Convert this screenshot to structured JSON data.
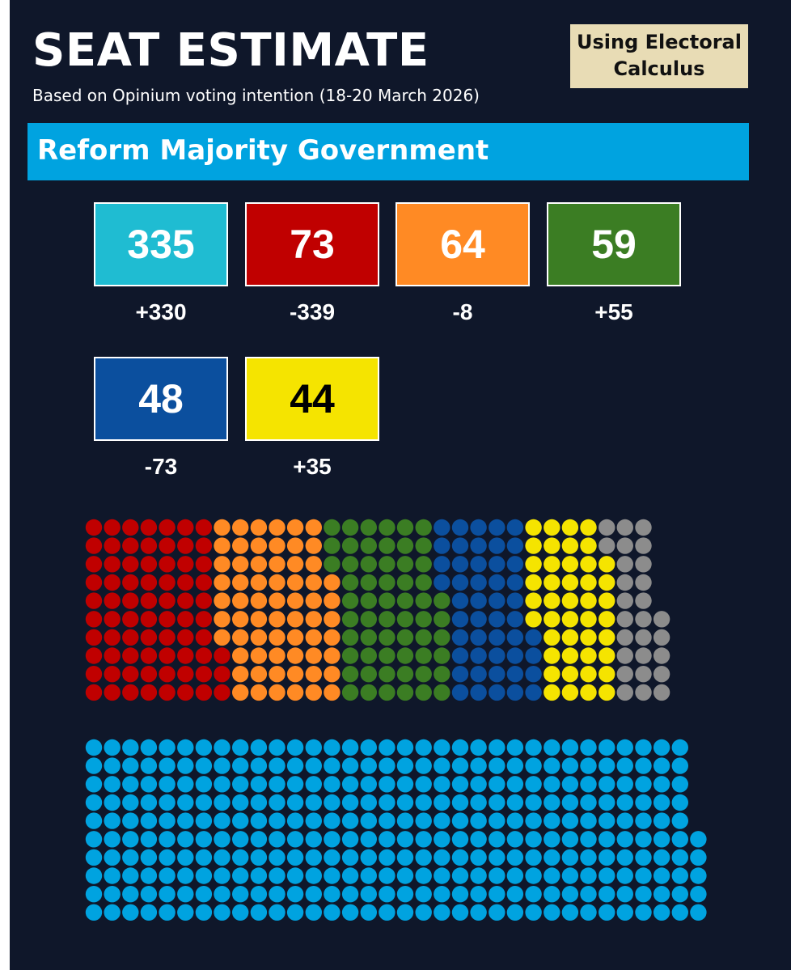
{
  "header": {
    "title": "SEAT ESTIMATE",
    "subtitle": "Based on Opinium voting intention (18-20 March 2026)",
    "source_line1": "Using Electoral",
    "source_line2": "Calculus"
  },
  "banner": {
    "text": "Reform Majority Government"
  },
  "parties": [
    {
      "key": "reform",
      "seats": "335",
      "change": "+330",
      "color": "#1fbcd2",
      "text_color": "#ffffff"
    },
    {
      "key": "labour",
      "seats": "73",
      "change": "-339",
      "color": "#c00000",
      "text_color": "#ffffff"
    },
    {
      "key": "libdem",
      "seats": "64",
      "change": "-8",
      "color": "#ff8a24",
      "text_color": "#ffffff"
    },
    {
      "key": "green",
      "seats": "59",
      "change": "+55",
      "color": "#3b7d23",
      "text_color": "#ffffff"
    },
    {
      "key": "conservative",
      "seats": "48",
      "change": "-73",
      "color": "#0b4f9e",
      "text_color": "#ffffff"
    },
    {
      "key": "snp",
      "seats": "44",
      "change": "+35",
      "color": "#f5e400",
      "text_color": "#000000"
    }
  ],
  "chart_data": {
    "type": "waffle",
    "title": "SEAT ESTIMATE",
    "series": [
      {
        "key": "reform",
        "value": 335,
        "color": "#00a3e0"
      },
      {
        "key": "labour",
        "value": 73,
        "color": "#c00000"
      },
      {
        "key": "libdem",
        "value": 64,
        "color": "#ff8a24"
      },
      {
        "key": "green",
        "value": 59,
        "color": "#3b7d23"
      },
      {
        "key": "conservative",
        "value": 48,
        "color": "#0b4f9e"
      },
      {
        "key": "snp",
        "value": 44,
        "color": "#f5e400"
      },
      {
        "key": "other",
        "value": 27,
        "color": "#8c8c8c"
      }
    ],
    "total": 650
  }
}
